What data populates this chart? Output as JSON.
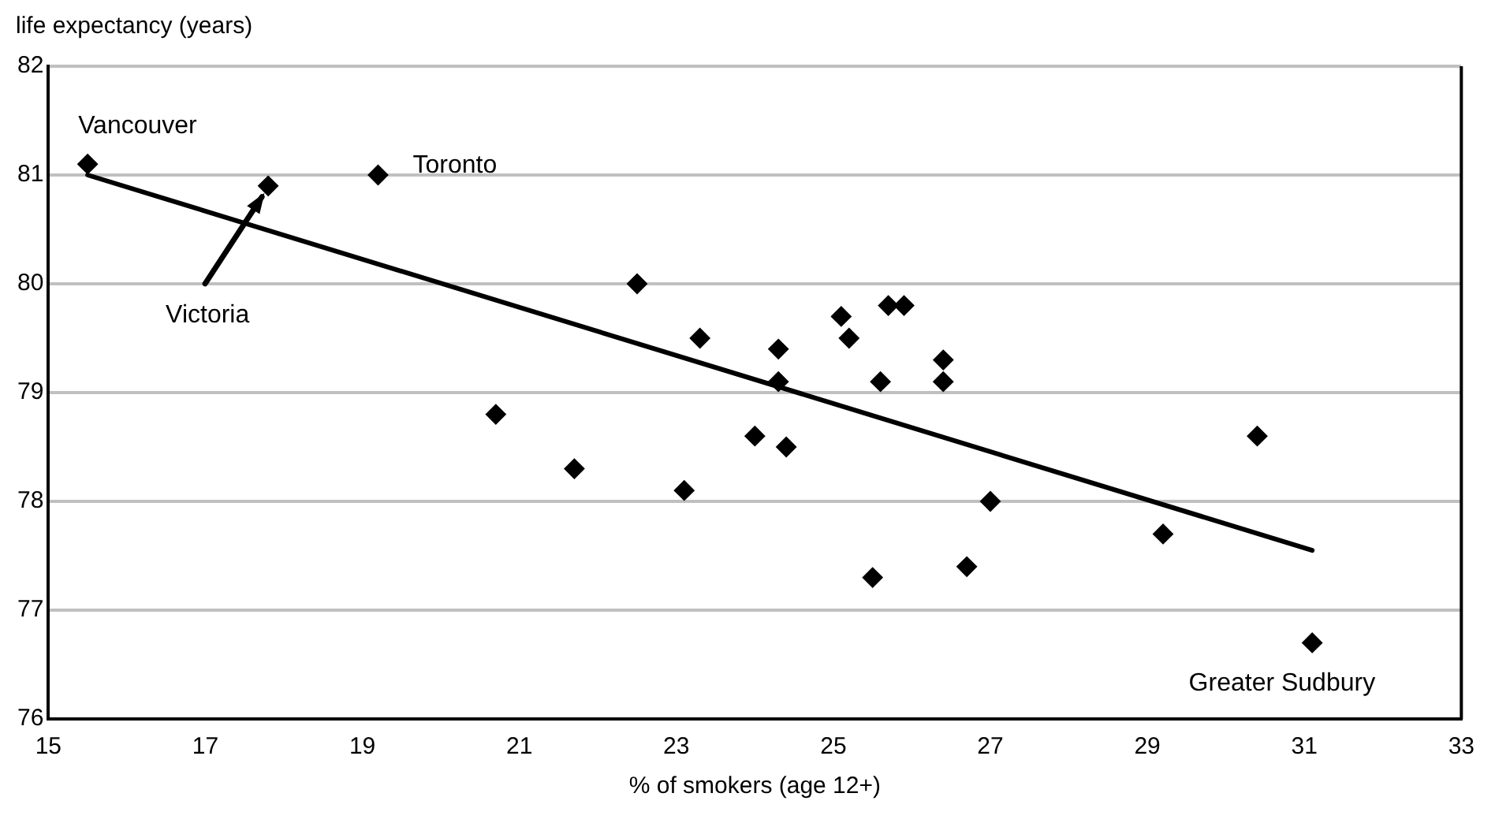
{
  "chart_data": {
    "type": "scatter",
    "xlabel": "% of smokers (age 12+)",
    "ylabel": "life expectancy (years)",
    "xlim": [
      15,
      33
    ],
    "xticks": [
      15,
      17,
      19,
      21,
      23,
      25,
      27,
      29,
      31,
      33
    ],
    "ylim": [
      76,
      82
    ],
    "yticks": [
      76,
      77,
      78,
      79,
      80,
      81,
      82
    ],
    "grid": "y",
    "legend": false,
    "series": [
      {
        "type": "scatter",
        "color": "#000000",
        "marker": "diamond",
        "x": [
          15.5,
          17.8,
          19.2,
          20.7,
          21.7,
          22.5,
          23.1,
          23.3,
          24.0,
          24.3,
          24.3,
          24.4,
          25.1,
          25.2,
          25.5,
          25.6,
          25.7,
          25.9,
          26.4,
          26.4,
          26.7,
          27.0,
          29.2,
          30.4,
          31.1
        ],
        "values": [
          81.1,
          80.9,
          81.0,
          78.8,
          78.3,
          80.0,
          78.1,
          79.5,
          78.6,
          79.4,
          79.1,
          78.5,
          79.7,
          79.5,
          77.3,
          79.1,
          79.8,
          79.8,
          79.3,
          79.1,
          77.4,
          78.0,
          77.7,
          78.6,
          76.7
        ]
      },
      {
        "type": "line",
        "color": "#000000",
        "marker": "none",
        "line_style": "solid",
        "x": [
          15.5,
          31.1
        ],
        "values": [
          81.0,
          77.55
        ]
      }
    ],
    "annotations": [
      {
        "text": "Vancouver",
        "x": 15.5,
        "y": 81.1
      },
      {
        "text": "Toronto",
        "x": 19.2,
        "y": 81.0
      },
      {
        "text": "Victoria",
        "x": 17.8,
        "y": 80.9
      },
      {
        "text": "Greater Sudbury",
        "x": 31.1,
        "y": 76.7
      }
    ]
  }
}
